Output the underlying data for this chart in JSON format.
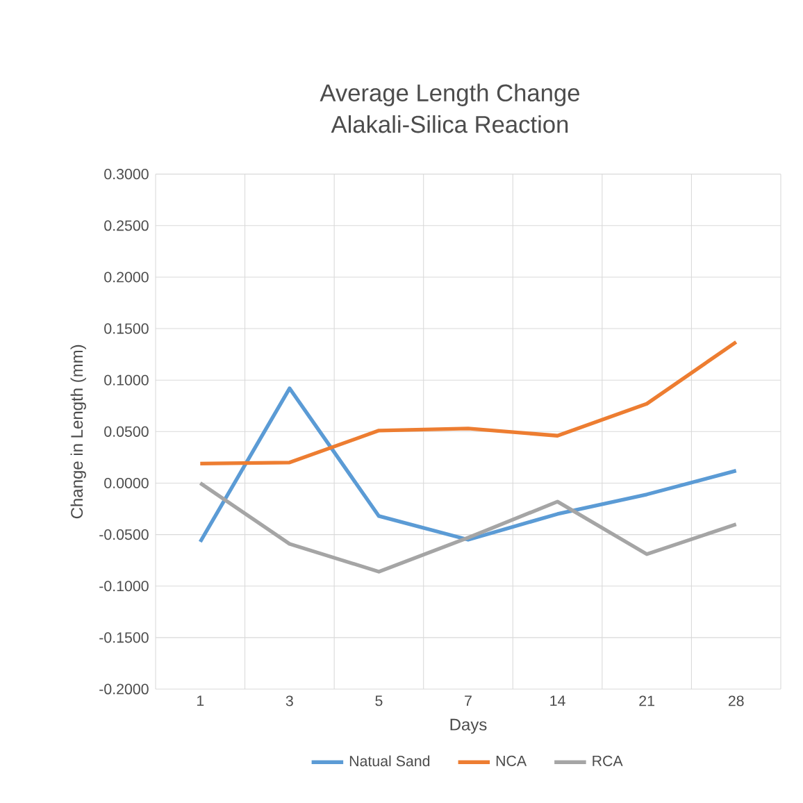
{
  "chart_data": {
    "type": "line",
    "title": "Average Length Change\nAlakali-Silica Reaction",
    "xlabel": "Days",
    "ylabel": "Change in Length (mm)",
    "categories": [
      "1",
      "3",
      "5",
      "7",
      "14",
      "21",
      "28"
    ],
    "series": [
      {
        "name": "Natual Sand",
        "color": "#5b9bd5",
        "values": [
          -0.057,
          0.092,
          -0.032,
          -0.055,
          -0.03,
          -0.011,
          0.012
        ]
      },
      {
        "name": "NCA",
        "color": "#ed7d31",
        "values": [
          0.019,
          0.02,
          0.051,
          0.053,
          0.046,
          0.077,
          0.137
        ]
      },
      {
        "name": "RCA",
        "color": "#a5a5a5",
        "values": [
          0.0,
          -0.059,
          -0.086,
          -0.053,
          -0.018,
          -0.069,
          -0.04
        ]
      }
    ],
    "ylim": [
      -0.2,
      0.3
    ],
    "yticks": [
      {
        "value": -0.2,
        "label": "-0.2000"
      },
      {
        "value": -0.15,
        "label": "-0.1500"
      },
      {
        "value": -0.1,
        "label": "-0.1000"
      },
      {
        "value": -0.05,
        "label": "-0.0500"
      },
      {
        "value": 0,
        "label": "0.0000"
      },
      {
        "value": 0.05,
        "label": "0.0500"
      },
      {
        "value": 0.1,
        "label": "0.1000"
      },
      {
        "value": 0.15,
        "label": "0.1500"
      },
      {
        "value": 0.2,
        "label": "0.2000"
      },
      {
        "value": 0.25,
        "label": "0.2500"
      },
      {
        "value": 0.3,
        "label": "0.3000"
      }
    ],
    "grid": true,
    "legend": "bottom",
    "marker": "none",
    "line_style": "solid"
  }
}
